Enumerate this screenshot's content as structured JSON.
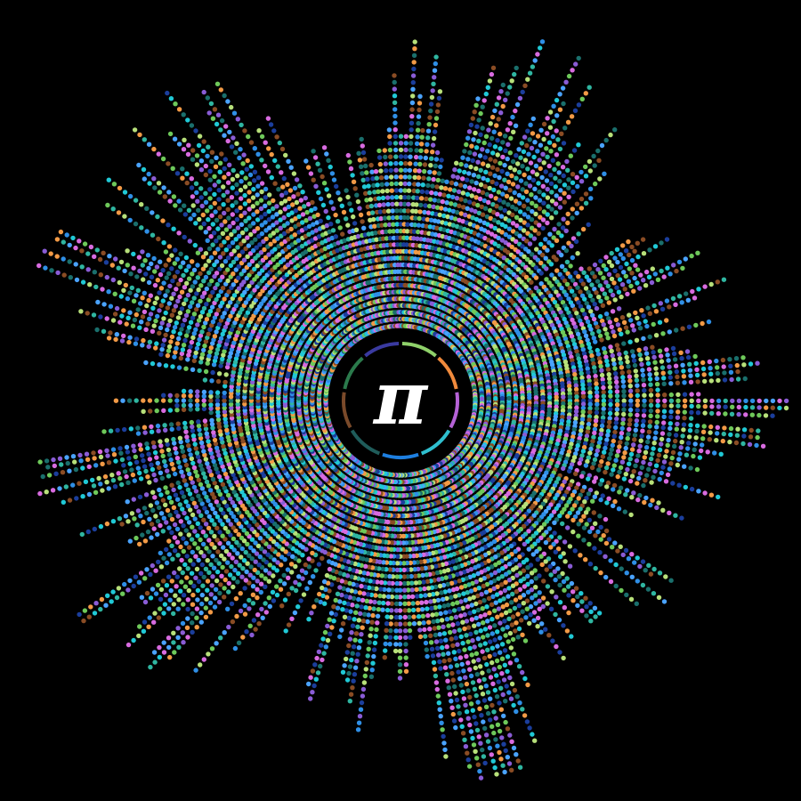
{
  "artwork": {
    "background": "#000000",
    "center_symbol": "π",
    "center_disc_color": "#000000",
    "symbol_color": "#ffffff",
    "ring_arc_colors": [
      "#8fd16a",
      "#f08a3c",
      "#b562d6",
      "#2fbfcf",
      "#1e7fe0",
      "#1f5c5a",
      "#7a4a2a",
      "#2b7a4c",
      "#3a3aa0"
    ],
    "dot_palette": [
      "#2f8fe6",
      "#20c9d6",
      "#b7e07a",
      "#f29a46",
      "#d86be0",
      "#1a6f6c",
      "#8a5cd6",
      "#6ec95a",
      "#1b3e9c",
      "#8a4c24",
      "#2fb6a1",
      "#4aa3ff"
    ]
  }
}
